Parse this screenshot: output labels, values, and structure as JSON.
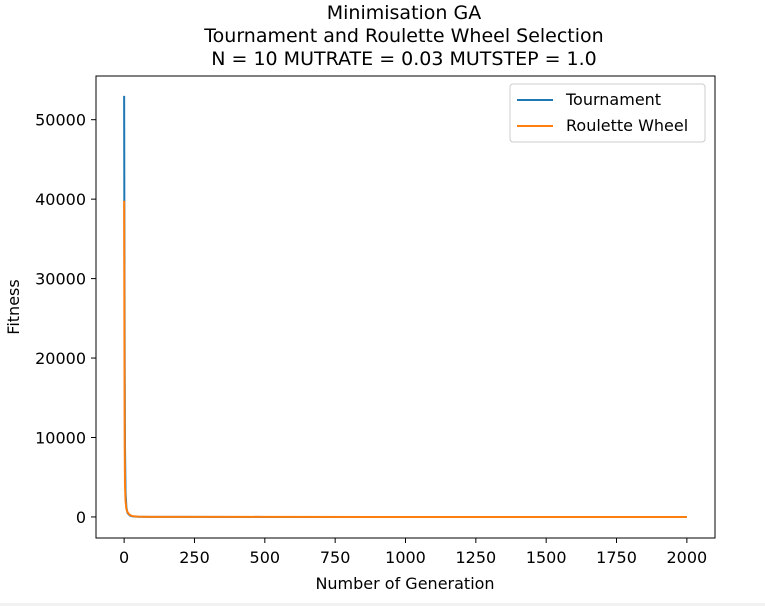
{
  "chart_data": {
    "type": "line",
    "title_lines": [
      "Minimisation GA",
      "Tournament and Roulette Wheel Selection",
      "N = 10 MUTRATE = 0.03 MUTSTEP = 1.0"
    ],
    "xlabel": "Number of Generation",
    "ylabel": "Fitness",
    "xlim": [
      -100,
      2100
    ],
    "ylim": [
      -2650,
      55500
    ],
    "xticks": [
      0,
      250,
      500,
      750,
      1000,
      1250,
      1500,
      1750,
      2000
    ],
    "yticks": [
      0,
      10000,
      20000,
      30000,
      40000,
      50000
    ],
    "grid": false,
    "legend_position": "top-right",
    "series": [
      {
        "name": "Tournament",
        "color": "#1f77b4",
        "x": [
          0,
          1,
          2,
          3,
          5,
          8,
          12,
          20,
          30,
          50,
          100,
          200,
          500,
          1000,
          1500,
          2000
        ],
        "y": [
          53000,
          34000,
          20000,
          9000,
          3200,
          1200,
          500,
          180,
          70,
          25,
          8,
          3,
          1,
          0.5,
          0.3,
          0.2
        ]
      },
      {
        "name": "Roulette Wheel",
        "color": "#ff7f0e",
        "x": [
          0,
          1,
          2,
          3,
          5,
          8,
          12,
          20,
          30,
          50,
          100,
          200,
          500,
          1000,
          1500,
          2000
        ],
        "y": [
          39800,
          22000,
          9000,
          4000,
          2000,
          1000,
          600,
          250,
          100,
          40,
          12,
          5,
          2,
          1,
          0.5,
          0.3
        ]
      }
    ]
  }
}
